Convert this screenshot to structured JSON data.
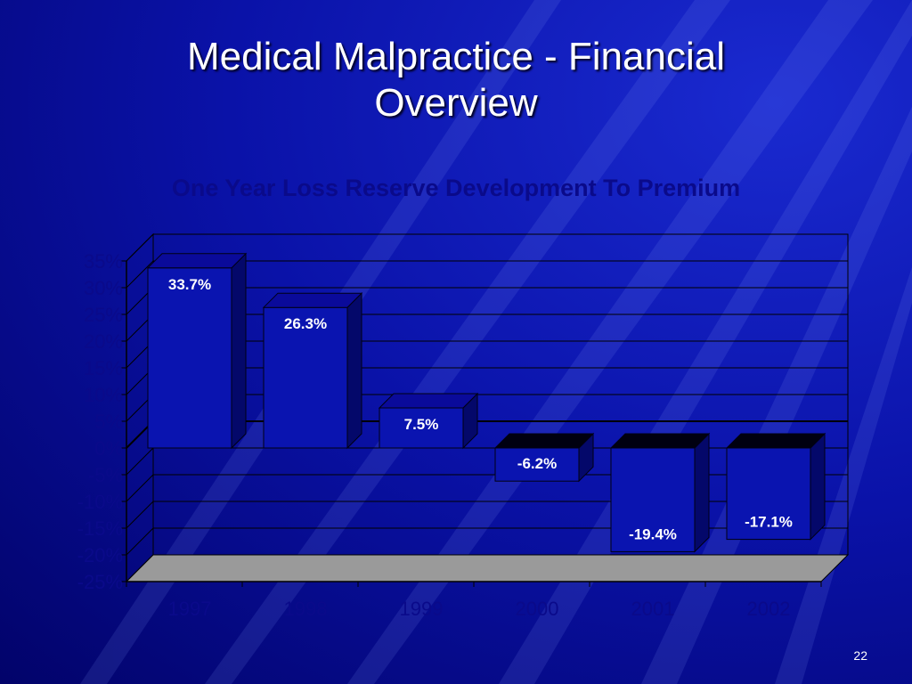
{
  "slide": {
    "title_line1": "Medical Malpractice - Financial",
    "title_line2": "Overview",
    "page_number": "22"
  },
  "colors": {
    "background_dark": "#00006a",
    "background_mid": "#0a1ab0",
    "bar_front": "#0a14b0",
    "bar_side": "#04086a",
    "bar_top": "#0a0a9a",
    "floor": "#9a9a9a",
    "chart_title": "#0a0a8a",
    "tick_label": "#0a0a8a",
    "grid": "#000000"
  },
  "chart_data": {
    "type": "bar",
    "title": "One Year Loss Reserve Development To Premium",
    "categories": [
      "1997",
      "1998",
      "1999",
      "2000",
      "2001",
      "2002"
    ],
    "values": [
      33.7,
      26.3,
      7.5,
      -6.2,
      -19.4,
      -17.1
    ],
    "data_labels": [
      "33.7%",
      "26.3%",
      "7.5%",
      "-6.2%",
      "-19.4%",
      "-17.1%"
    ],
    "y_ticks": [
      35,
      30,
      25,
      20,
      15,
      10,
      5,
      0,
      -5,
      -10,
      -15,
      -20,
      -25
    ],
    "y_tick_labels": [
      "35%",
      "30%",
      "25%",
      "20%",
      "15%",
      "10%",
      "5%",
      "0%",
      "-5%",
      "-10%",
      "-15%",
      "-20%",
      "-25%"
    ],
    "ylim": [
      -25,
      35
    ],
    "grid": true,
    "style": "3d-column",
    "legend": "none"
  }
}
